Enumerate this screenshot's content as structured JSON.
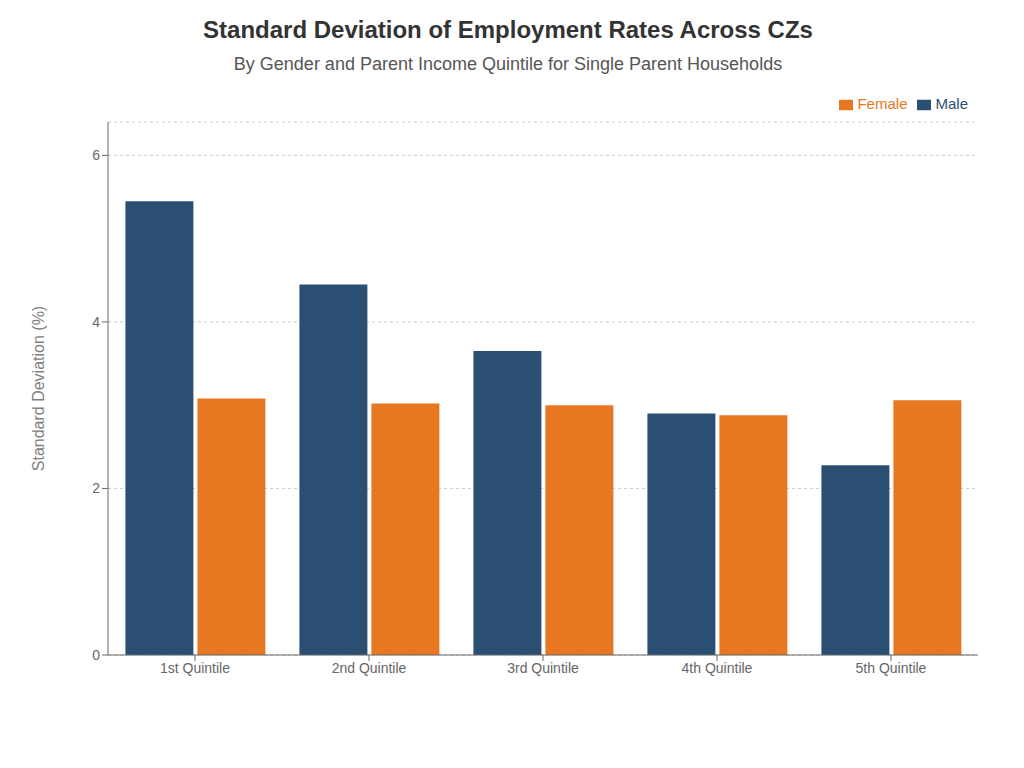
{
  "chart_data": {
    "type": "bar",
    "title": "Standard Deviation of Employment Rates Across CZs",
    "subtitle": "By Gender and Parent Income Quintile for Single Parent Households",
    "ylabel": "Standard Deviation (%)",
    "categories": [
      "1st Quintile",
      "2nd Quintile",
      "3rd Quintile",
      "4th Quintile",
      "5th Quintile"
    ],
    "series": [
      {
        "name": "Male",
        "color": "#2b4f72",
        "values": [
          5.45,
          4.45,
          3.65,
          2.9,
          2.28
        ]
      },
      {
        "name": "Female",
        "color": "#e87722",
        "values": [
          3.08,
          3.02,
          3.0,
          2.88,
          3.06
        ]
      }
    ],
    "ylim": [
      0,
      6.4
    ],
    "yticks": [
      0,
      2,
      4,
      6
    ],
    "grid": true,
    "legend": "upper right"
  }
}
